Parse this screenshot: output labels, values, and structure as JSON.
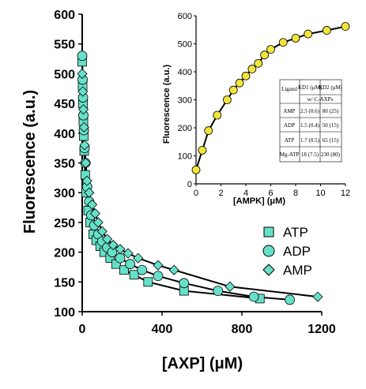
{
  "chart_data": [
    {
      "type": "scatter",
      "xlabel": "[AXP] (μM)",
      "ylabel": "Fluorescence (a.u.)",
      "xlim": [
        0,
        1200
      ],
      "ylim": [
        100,
        600
      ],
      "xticks": [
        "0",
        "400",
        "800",
        "1200"
      ],
      "yticks": [
        "100",
        "150",
        "200",
        "250",
        "300",
        "350",
        "400",
        "450",
        "500",
        "550",
        "600"
      ],
      "marker_color": "#66e0c8",
      "legend_position": "right",
      "series": [
        {
          "name": "ATP",
          "marker": "square",
          "x": [
            0,
            2,
            4,
            6,
            8,
            10,
            15,
            20,
            30,
            40,
            55,
            70,
            90,
            110,
            140,
            170,
            210,
            260,
            330,
            510,
            890
          ],
          "y": [
            520,
            480,
            450,
            420,
            395,
            370,
            330,
            300,
            270,
            250,
            230,
            220,
            210,
            200,
            190,
            180,
            170,
            162,
            150,
            135,
            122
          ]
        },
        {
          "name": "ADP",
          "marker": "circle",
          "x": [
            0,
            2,
            4,
            6,
            8,
            12,
            16,
            25,
            35,
            45,
            60,
            80,
            100,
            125,
            150,
            190,
            240,
            300,
            380,
            510,
            680,
            860,
            1040
          ],
          "y": [
            530,
            490,
            460,
            430,
            405,
            375,
            350,
            310,
            285,
            262,
            245,
            230,
            218,
            208,
            200,
            190,
            180,
            170,
            160,
            148,
            135,
            125,
            120
          ]
        },
        {
          "name": "AMP",
          "marker": "diamond",
          "x": [
            0,
            3,
            6,
            9,
            12,
            18,
            24,
            35,
            50,
            65,
            80,
            100,
            125,
            155,
            190,
            230,
            280,
            380,
            460,
            740,
            1180
          ],
          "y": [
            500,
            470,
            440,
            410,
            380,
            350,
            320,
            300,
            280,
            265,
            250,
            235,
            222,
            212,
            205,
            198,
            190,
            178,
            170,
            142,
            125
          ]
        }
      ]
    },
    {
      "type": "line",
      "xlabel": "[AMPK] (μM)",
      "ylabel": "Fluorescence (a.u.)",
      "xlim": [
        0,
        12
      ],
      "ylim": [
        0,
        600
      ],
      "xticks": [
        "0",
        "2",
        "4",
        "6",
        "8",
        "10",
        "12"
      ],
      "yticks": [
        "0",
        "100",
        "200",
        "300",
        "400",
        "500",
        "600"
      ],
      "marker_color": "#f2e63a",
      "x": [
        0,
        0.5,
        1,
        1.7,
        2.5,
        3,
        3.5,
        4,
        4.5,
        5,
        5.5,
        6,
        7,
        8,
        9,
        10.5,
        12
      ],
      "y": [
        50,
        120,
        190,
        245,
        300,
        335,
        360,
        385,
        410,
        430,
        460,
        480,
        505,
        520,
        535,
        548,
        562
      ],
      "table": {
        "headers": [
          "Ligand",
          "KD1 (μM)",
          "KD2 (μM)"
        ],
        "subheader": "w/ C-AXPs",
        "rows": [
          [
            "AMP",
            "2.5 (0.6)",
            "80 (25)"
          ],
          [
            "ADP",
            "1.5 (0.4)",
            "50 (15)"
          ],
          [
            "ATP",
            "1.7 (0.5)",
            "65 (15)"
          ],
          [
            "Mg-ATP",
            "18 (7.5)",
            "230 (80)"
          ]
        ]
      }
    }
  ]
}
